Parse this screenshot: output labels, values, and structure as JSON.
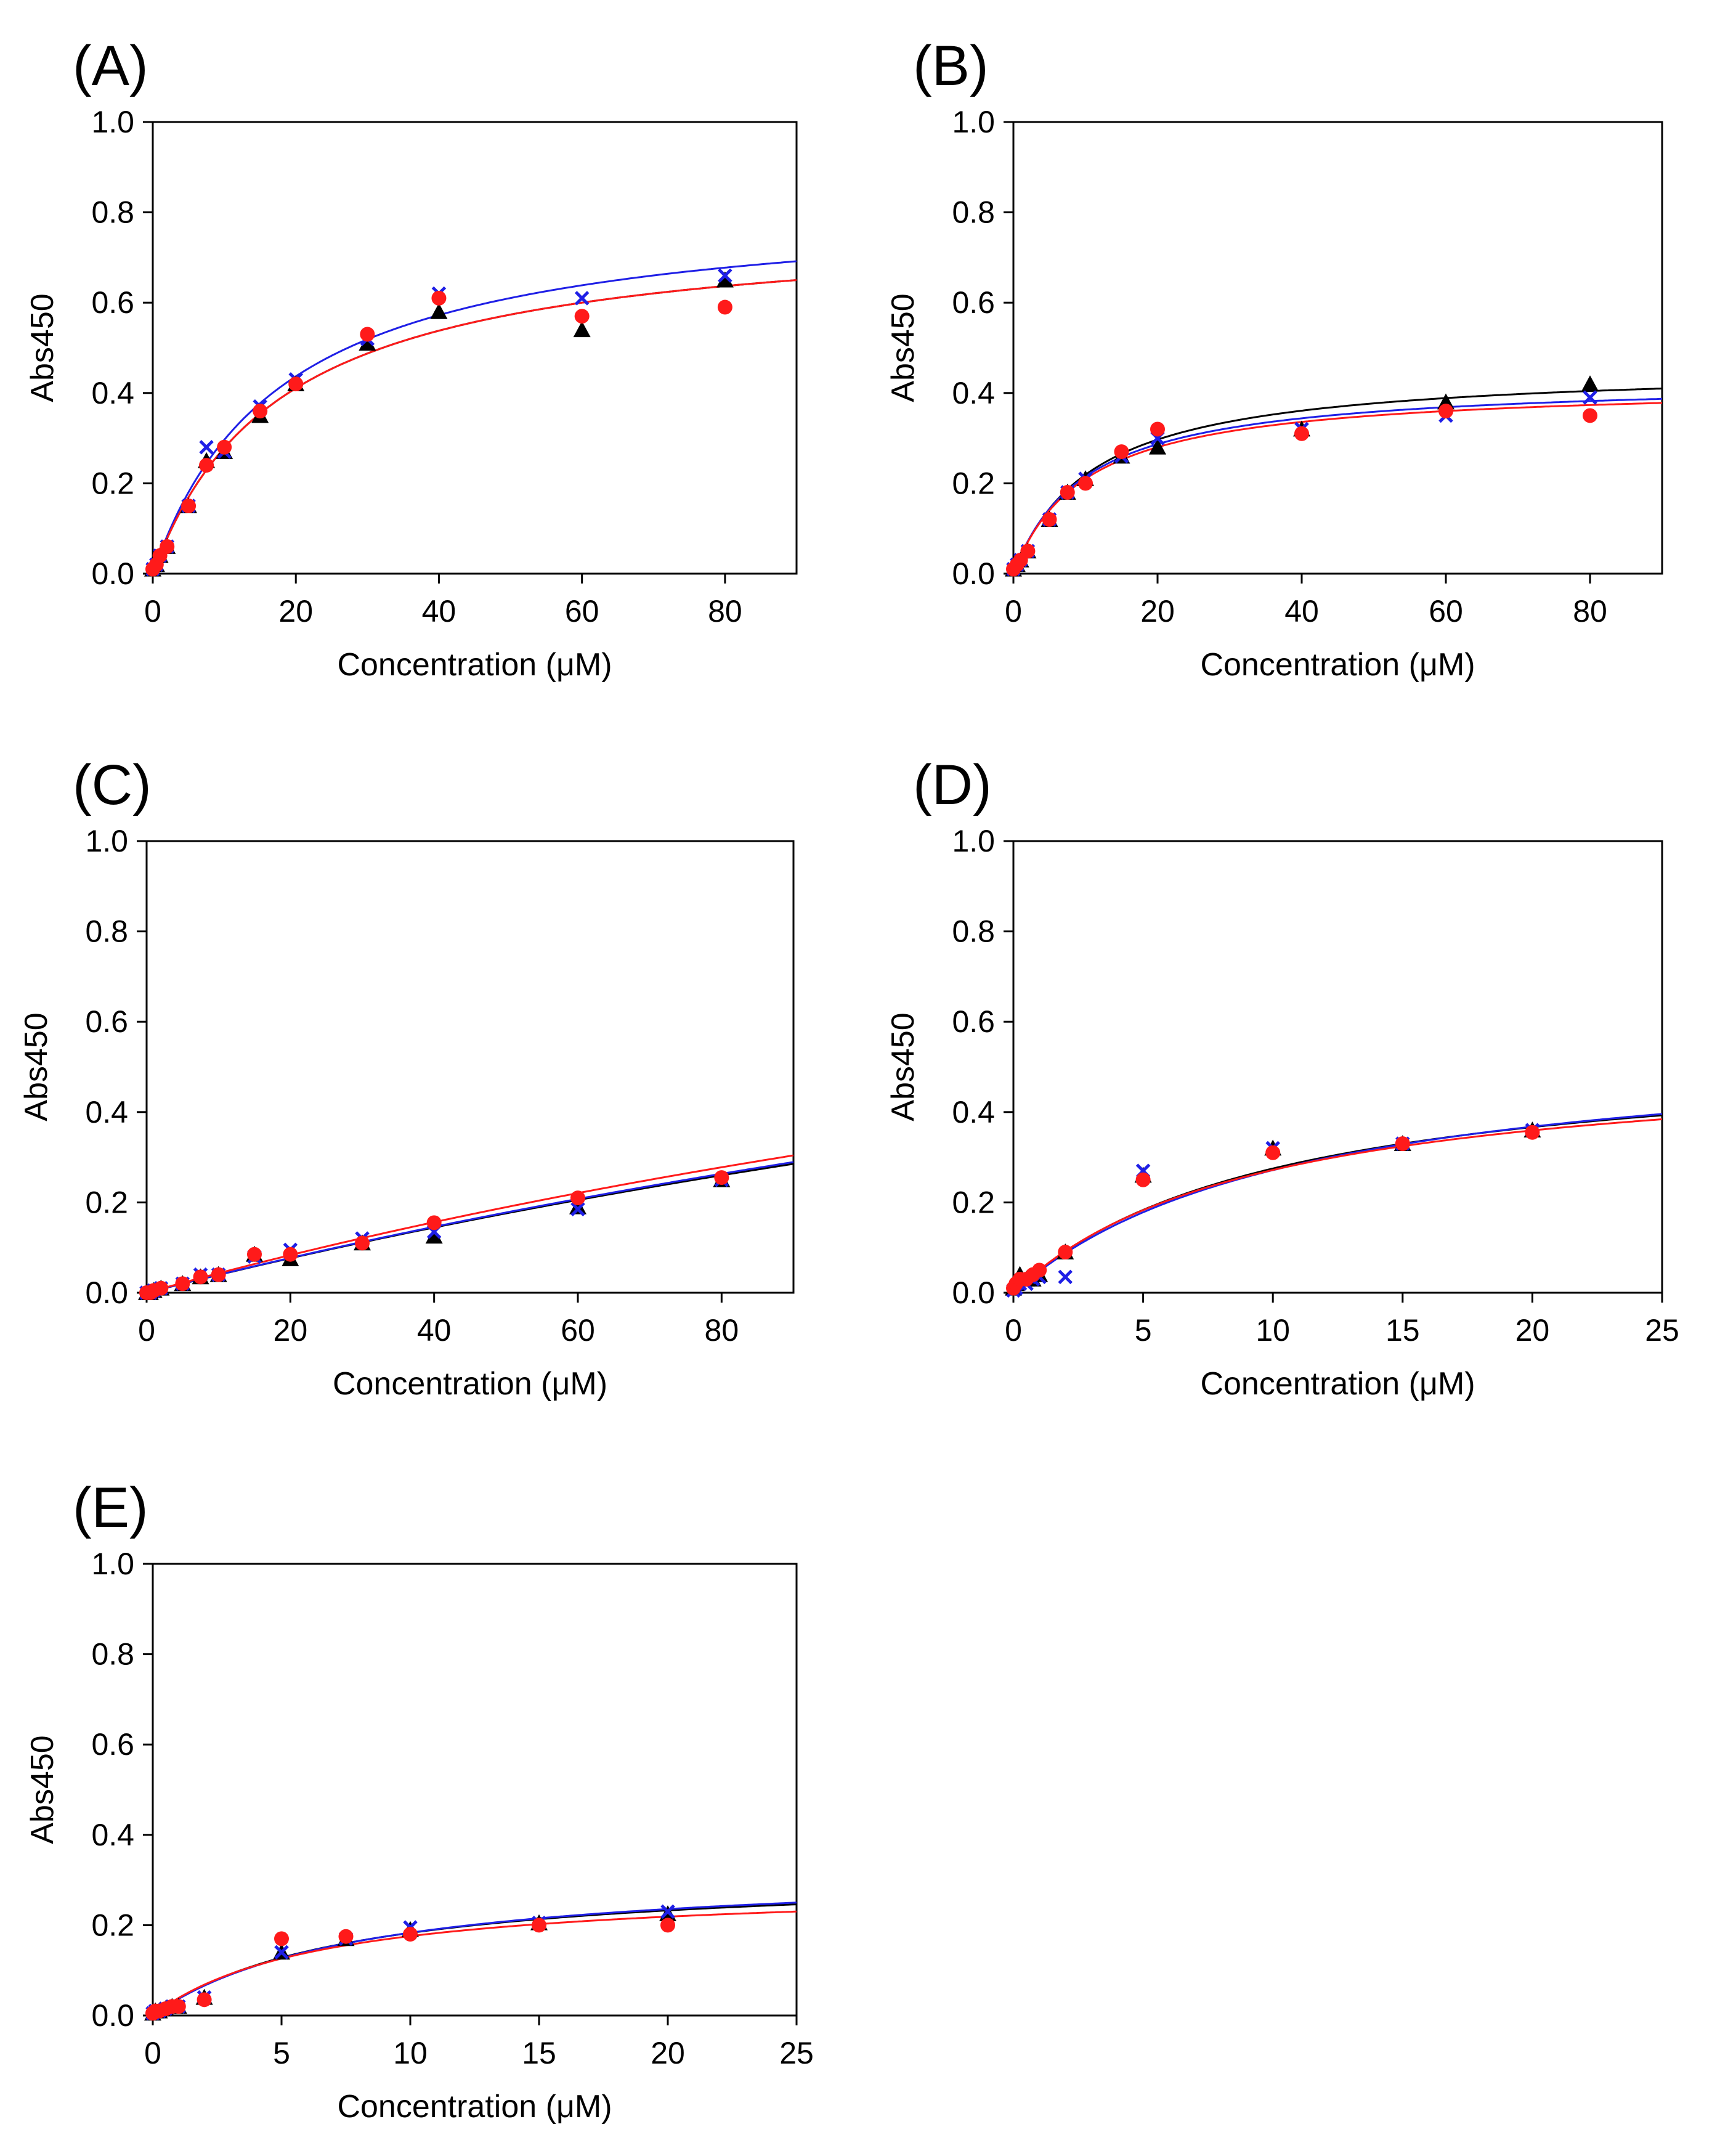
{
  "figure": {
    "background": "#ffffff"
  },
  "colors": {
    "black": "#000000",
    "blue": "#1f1fe6",
    "red": "#ff1a1a"
  },
  "chart_data": [
    {
      "type": "scatter",
      "panel": "(A)",
      "xlabel": "Concentration (μM)",
      "ylabel": "Abs450",
      "xlim": [
        0,
        90
      ],
      "ylim": [
        0,
        1.0
      ],
      "xticks": [
        "0",
        "20",
        "40",
        "60",
        "80"
      ],
      "yticks": [
        "0.0",
        "0.2",
        "0.4",
        "0.6",
        "0.8",
        "1.0"
      ],
      "series": [
        {
          "name": "black",
          "marker": "triangle",
          "color": "#000000",
          "x": [
            0,
            0.5,
            1,
            2,
            5,
            7.5,
            10,
            15,
            20,
            30,
            40,
            60,
            80
          ],
          "y": [
            0.01,
            0.02,
            0.04,
            0.06,
            0.15,
            0.25,
            0.27,
            0.35,
            0.42,
            0.51,
            0.58,
            0.54,
            0.65
          ],
          "fit": {
            "vmax": 0.78,
            "km": 18
          }
        },
        {
          "name": "blue",
          "marker": "x",
          "color": "#1f1fe6",
          "x": [
            0,
            0.5,
            1,
            2,
            5,
            7.5,
            10,
            15,
            20,
            30,
            40,
            60,
            80
          ],
          "y": [
            0.01,
            0.02,
            0.04,
            0.06,
            0.15,
            0.28,
            0.27,
            0.37,
            0.43,
            0.52,
            0.62,
            0.61,
            0.66
          ],
          "fit": {
            "vmax": 0.83,
            "km": 18
          }
        },
        {
          "name": "red",
          "marker": "circle",
          "color": "#ff1a1a",
          "x": [
            0,
            0.5,
            1,
            2,
            5,
            7.5,
            10,
            15,
            20,
            30,
            40,
            60,
            80
          ],
          "y": [
            0.01,
            0.02,
            0.04,
            0.06,
            0.15,
            0.24,
            0.28,
            0.36,
            0.42,
            0.53,
            0.61,
            0.57,
            0.59
          ],
          "fit": {
            "vmax": 0.78,
            "km": 18
          }
        }
      ]
    },
    {
      "type": "scatter",
      "panel": "(B)",
      "xlabel": "Concentration (μM)",
      "ylabel": "Abs450",
      "xlim": [
        0,
        90
      ],
      "ylim": [
        0,
        1.0
      ],
      "xticks": [
        "0",
        "20",
        "40",
        "60",
        "80"
      ],
      "yticks": [
        "0.0",
        "0.2",
        "0.4",
        "0.6",
        "0.8",
        "1.0"
      ],
      "series": [
        {
          "name": "black",
          "marker": "triangle",
          "color": "#000000",
          "x": [
            0,
            0.5,
            1,
            2,
            5,
            7.5,
            10,
            15,
            20,
            40,
            60,
            80
          ],
          "y": [
            0.01,
            0.02,
            0.03,
            0.05,
            0.12,
            0.18,
            0.21,
            0.26,
            0.28,
            0.32,
            0.38,
            0.42
          ],
          "fit": {
            "vmax": 0.46,
            "km": 11
          }
        },
        {
          "name": "blue",
          "marker": "x",
          "color": "#1f1fe6",
          "x": [
            0,
            0.5,
            1,
            2,
            5,
            7.5,
            10,
            15,
            20,
            40,
            60,
            80
          ],
          "y": [
            0.01,
            0.02,
            0.03,
            0.05,
            0.12,
            0.18,
            0.21,
            0.26,
            0.3,
            0.32,
            0.35,
            0.39
          ],
          "fit": {
            "vmax": 0.43,
            "km": 10
          }
        },
        {
          "name": "red",
          "marker": "circle",
          "color": "#ff1a1a",
          "x": [
            0,
            0.5,
            1,
            2,
            5,
            7.5,
            10,
            15,
            20,
            40,
            60,
            80
          ],
          "y": [
            0.01,
            0.02,
            0.03,
            0.05,
            0.12,
            0.18,
            0.2,
            0.27,
            0.32,
            0.31,
            0.36,
            0.35
          ],
          "fit": {
            "vmax": 0.42,
            "km": 10
          }
        }
      ]
    },
    {
      "type": "scatter",
      "panel": "(C)",
      "xlabel": "Concentration (μM)",
      "ylabel": "Abs450",
      "xlim": [
        0,
        90
      ],
      "ylim": [
        0,
        1.0
      ],
      "xticks": [
        "0",
        "20",
        "40",
        "60",
        "80"
      ],
      "yticks": [
        "0.0",
        "0.2",
        "0.4",
        "0.6",
        "0.8",
        "1.0"
      ],
      "series": [
        {
          "name": "black",
          "marker": "triangle",
          "color": "#000000",
          "x": [
            0,
            0.5,
            1,
            2,
            5,
            7.5,
            10,
            15,
            20,
            30,
            40,
            60,
            80
          ],
          "y": [
            0.0,
            0.0,
            0.005,
            0.01,
            0.02,
            0.035,
            0.04,
            0.085,
            0.075,
            0.11,
            0.125,
            0.19,
            0.25
          ],
          "fit": {
            "vmax": 1.3,
            "km": 320
          }
        },
        {
          "name": "blue",
          "marker": "x",
          "color": "#1f1fe6",
          "x": [
            0,
            0.5,
            1,
            2,
            5,
            7.5,
            10,
            15,
            20,
            30,
            40,
            60,
            80
          ],
          "y": [
            0.0,
            0.0,
            0.005,
            0.01,
            0.02,
            0.04,
            0.04,
            0.08,
            0.095,
            0.12,
            0.135,
            0.185,
            0.25
          ],
          "fit": {
            "vmax": 1.35,
            "km": 330
          }
        },
        {
          "name": "red",
          "marker": "circle",
          "color": "#ff1a1a",
          "x": [
            0,
            0.5,
            1,
            2,
            5,
            7.5,
            10,
            15,
            20,
            30,
            40,
            60,
            80
          ],
          "y": [
            0.0,
            0.0,
            0.005,
            0.01,
            0.02,
            0.035,
            0.04,
            0.085,
            0.085,
            0.11,
            0.155,
            0.21,
            0.255
          ],
          "fit": {
            "vmax": 1.25,
            "km": 280
          }
        }
      ]
    },
    {
      "type": "scatter",
      "panel": "(D)",
      "xlabel": "Concentration (μM)",
      "ylabel": "Abs450",
      "xlim": [
        0,
        25
      ],
      "ylim": [
        0,
        1.0
      ],
      "xticks": [
        "0",
        "5",
        "10",
        "15",
        "20",
        "25"
      ],
      "yticks": [
        "0.0",
        "0.2",
        "0.4",
        "0.6",
        "0.8",
        "1.0"
      ],
      "series": [
        {
          "name": "black",
          "marker": "triangle",
          "color": "#000000",
          "x": [
            0,
            0.1,
            0.25,
            0.5,
            0.75,
            1,
            2,
            5,
            10,
            15,
            20
          ],
          "y": [
            0.01,
            0.02,
            0.04,
            0.03,
            0.03,
            0.04,
            0.09,
            0.26,
            0.32,
            0.33,
            0.36
          ],
          "fit": {
            "vmax": 0.55,
            "km": 10
          }
        },
        {
          "name": "blue",
          "marker": "x",
          "color": "#1f1fe6",
          "x": [
            0,
            0.1,
            0.25,
            0.5,
            0.75,
            1,
            2,
            5,
            10,
            15,
            20
          ],
          "y": [
            0.005,
            0.01,
            0.02,
            0.02,
            0.03,
            0.035,
            0.035,
            0.27,
            0.32,
            0.33,
            0.36
          ],
          "fit": {
            "vmax": 0.57,
            "km": 11
          }
        },
        {
          "name": "red",
          "marker": "circle",
          "color": "#ff1a1a",
          "x": [
            0,
            0.1,
            0.25,
            0.5,
            0.75,
            1,
            2,
            5,
            10,
            15,
            20
          ],
          "y": [
            0.01,
            0.02,
            0.03,
            0.03,
            0.04,
            0.05,
            0.09,
            0.25,
            0.31,
            0.33,
            0.355
          ],
          "fit": {
            "vmax": 0.53,
            "km": 9.5
          }
        }
      ]
    },
    {
      "type": "scatter",
      "panel": "(E)",
      "xlabel": "Concentration (μM)",
      "ylabel": "Abs450",
      "xlim": [
        0,
        25
      ],
      "ylim": [
        0,
        1.0
      ],
      "xticks": [
        "0",
        "5",
        "10",
        "15",
        "20",
        "25"
      ],
      "yticks": [
        "0.0",
        "0.2",
        "0.4",
        "0.6",
        "0.8",
        "1.0"
      ],
      "series": [
        {
          "name": "black",
          "marker": "triangle",
          "color": "#000000",
          "x": [
            0,
            0.1,
            0.25,
            0.5,
            0.75,
            1,
            2,
            5,
            7.5,
            10,
            15,
            20
          ],
          "y": [
            0.005,
            0.01,
            0.01,
            0.015,
            0.02,
            0.02,
            0.04,
            0.14,
            0.17,
            0.19,
            0.205,
            0.225
          ],
          "fit": {
            "vmax": 0.32,
            "km": 7.5
          }
        },
        {
          "name": "blue",
          "marker": "x",
          "color": "#1f1fe6",
          "x": [
            0,
            0.1,
            0.25,
            0.5,
            0.75,
            1,
            2,
            5,
            7.5,
            10,
            15,
            20
          ],
          "y": [
            0.005,
            0.01,
            0.01,
            0.015,
            0.02,
            0.02,
            0.04,
            0.14,
            0.17,
            0.195,
            0.205,
            0.23
          ],
          "fit": {
            "vmax": 0.33,
            "km": 8
          }
        },
        {
          "name": "red",
          "marker": "circle",
          "color": "#ff1a1a",
          "x": [
            0,
            0.1,
            0.25,
            0.5,
            0.75,
            1,
            2,
            5,
            7.5,
            10,
            15,
            20
          ],
          "y": [
            0.005,
            0.01,
            0.01,
            0.015,
            0.02,
            0.02,
            0.035,
            0.17,
            0.175,
            0.18,
            0.2,
            0.2
          ],
          "fit": {
            "vmax": 0.29,
            "km": 6.5
          }
        }
      ]
    }
  ]
}
